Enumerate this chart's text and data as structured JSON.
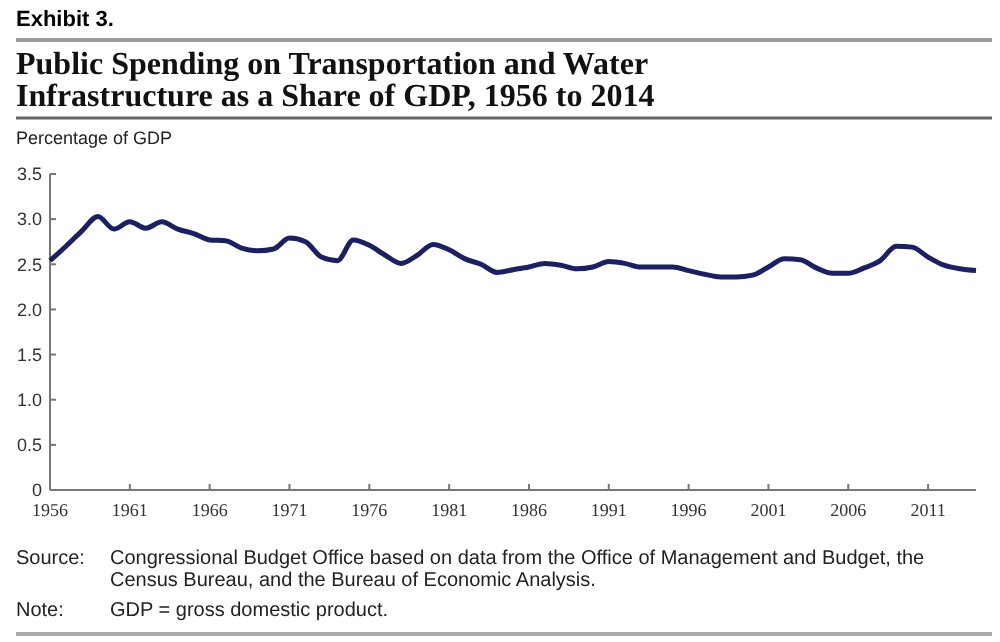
{
  "chart_data": {
    "type": "line",
    "title": "Public Spending on Transportation and Water Infrastructure as a Share of GDP, 1956 to 2014",
    "ylabel": "Percentage of GDP",
    "annotations": [
      "Exhibit 3.",
      "Source: Congressional Budget Office based on data from the Office of Management and Budget, the Census Bureau, and the Bureau of Economic Analysis.",
      "Note: GDP = gross domestic product."
    ],
    "x": [
      1956,
      1957,
      1958,
      1959,
      1960,
      1961,
      1962,
      1963,
      1964,
      1965,
      1966,
      1967,
      1968,
      1969,
      1970,
      1971,
      1972,
      1973,
      1974,
      1975,
      1976,
      1977,
      1978,
      1979,
      1980,
      1981,
      1982,
      1983,
      1984,
      1985,
      1986,
      1987,
      1988,
      1989,
      1990,
      1991,
      1992,
      1993,
      1994,
      1995,
      1996,
      1997,
      1998,
      1999,
      2000,
      2001,
      2002,
      2003,
      2004,
      2005,
      2006,
      2007,
      2008,
      2009,
      2010,
      2011,
      2012,
      2013,
      2014
    ],
    "series": [
      {
        "color": "#1b2160",
        "values": [
          2.54,
          2.7,
          2.87,
          3.03,
          2.89,
          2.97,
          2.9,
          2.97,
          2.89,
          2.84,
          2.77,
          2.76,
          2.68,
          2.65,
          2.67,
          2.79,
          2.75,
          2.58,
          2.54,
          2.77,
          2.71,
          2.6,
          2.51,
          2.6,
          2.72,
          2.66,
          2.56,
          2.5,
          2.41,
          2.44,
          2.47,
          2.51,
          2.49,
          2.45,
          2.47,
          2.53,
          2.51,
          2.47,
          2.47,
          2.47,
          2.43,
          2.39,
          2.36,
          2.36,
          2.38,
          2.47,
          2.56,
          2.55,
          2.46,
          2.4,
          2.4,
          2.46,
          2.54,
          2.7,
          2.69,
          2.58,
          2.49,
          2.45,
          2.43
        ]
      }
    ],
    "xlim": [
      1956,
      2014
    ],
    "xticks": [
      1956,
      1961,
      1966,
      1971,
      1976,
      1981,
      1986,
      1991,
      1996,
      2001,
      2006,
      2011
    ],
    "ylim": [
      0,
      3.5
    ],
    "yticks": [
      {
        "value": 0,
        "label": "0"
      },
      {
        "value": 0.5,
        "label": "0.5"
      },
      {
        "value": 1,
        "label": "1.0"
      },
      {
        "value": 1.5,
        "label": "1.5"
      },
      {
        "value": 2,
        "label": "2.0"
      },
      {
        "value": 2.5,
        "label": "2.5"
      },
      {
        "value": 3,
        "label": "3.0"
      },
      {
        "value": 3.5,
        "label": "3.5"
      }
    ],
    "grid": false,
    "marker": "none",
    "line_style": "solid"
  }
}
